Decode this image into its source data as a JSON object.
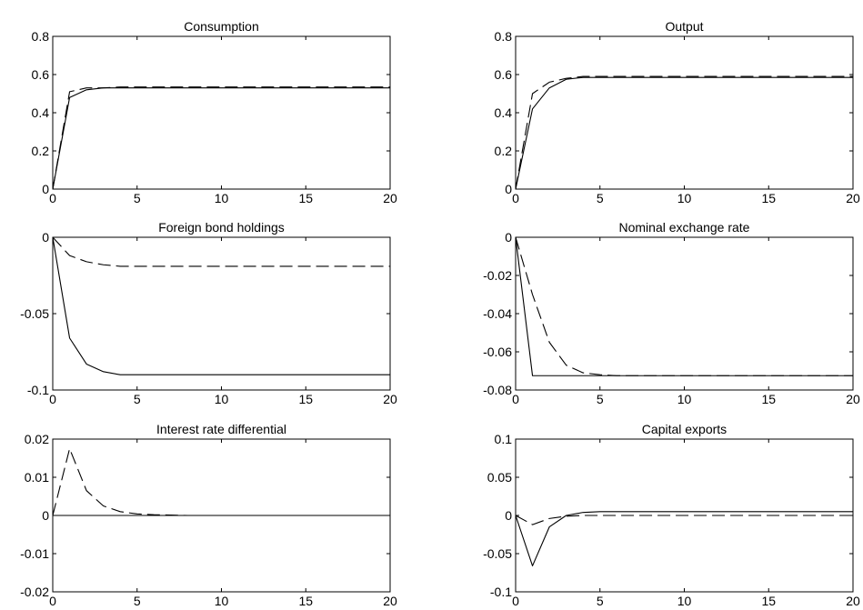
{
  "chart_data": [
    {
      "type": "line",
      "title": "Consumption",
      "xlim": [
        0,
        20
      ],
      "ylim": [
        0,
        0.8
      ],
      "xticks": [
        "0",
        "5",
        "10",
        "15",
        "20"
      ],
      "yticks": [
        "0",
        "0.2",
        "0.4",
        "0.6",
        "0.8"
      ],
      "x": [
        0,
        1,
        2,
        3,
        4,
        5,
        6,
        7,
        8,
        9,
        10,
        11,
        12,
        13,
        14,
        15,
        16,
        17,
        18,
        19,
        20
      ],
      "series": [
        {
          "style": "solid",
          "values": [
            0,
            0.48,
            0.52,
            0.53,
            0.53,
            0.53,
            0.53,
            0.53,
            0.53,
            0.53,
            0.53,
            0.53,
            0.53,
            0.53,
            0.53,
            0.53,
            0.53,
            0.53,
            0.53,
            0.53,
            0.53
          ]
        },
        {
          "style": "dashed",
          "values": [
            0,
            0.51,
            0.53,
            0.53,
            0.535,
            0.535,
            0.535,
            0.535,
            0.535,
            0.535,
            0.535,
            0.535,
            0.535,
            0.535,
            0.535,
            0.535,
            0.535,
            0.535,
            0.535,
            0.535,
            0.535
          ]
        }
      ]
    },
    {
      "type": "line",
      "title": "Output",
      "xlim": [
        0,
        20
      ],
      "ylim": [
        0,
        0.8
      ],
      "xticks": [
        "0",
        "5",
        "10",
        "15",
        "20"
      ],
      "yticks": [
        "0",
        "0.2",
        "0.4",
        "0.6",
        "0.8"
      ],
      "x": [
        0,
        1,
        2,
        3,
        4,
        5,
        6,
        7,
        8,
        9,
        10,
        11,
        12,
        13,
        14,
        15,
        16,
        17,
        18,
        19,
        20
      ],
      "series": [
        {
          "style": "solid",
          "values": [
            0,
            0.42,
            0.53,
            0.575,
            0.585,
            0.585,
            0.585,
            0.585,
            0.585,
            0.585,
            0.585,
            0.585,
            0.585,
            0.585,
            0.585,
            0.585,
            0.585,
            0.585,
            0.585,
            0.585,
            0.585
          ]
        },
        {
          "style": "dashed",
          "values": [
            0,
            0.5,
            0.56,
            0.58,
            0.59,
            0.59,
            0.59,
            0.59,
            0.59,
            0.59,
            0.59,
            0.59,
            0.59,
            0.59,
            0.59,
            0.59,
            0.59,
            0.59,
            0.59,
            0.59,
            0.59
          ]
        }
      ]
    },
    {
      "type": "line",
      "title": "Foreign bond holdings",
      "xlim": [
        0,
        20
      ],
      "ylim": [
        -0.1,
        0
      ],
      "xticks": [
        "0",
        "5",
        "10",
        "15",
        "20"
      ],
      "yticks": [
        "-0.1",
        "-0.05",
        "0"
      ],
      "x": [
        0,
        1,
        2,
        3,
        4,
        5,
        6,
        7,
        8,
        9,
        10,
        11,
        12,
        13,
        14,
        15,
        16,
        17,
        18,
        19,
        20
      ],
      "series": [
        {
          "style": "solid",
          "values": [
            0,
            -0.066,
            -0.083,
            -0.088,
            -0.09,
            -0.09,
            -0.09,
            -0.09,
            -0.09,
            -0.09,
            -0.09,
            -0.09,
            -0.09,
            -0.09,
            -0.09,
            -0.09,
            -0.09,
            -0.09,
            -0.09,
            -0.09,
            -0.09
          ]
        },
        {
          "style": "dashed",
          "values": [
            0,
            -0.012,
            -0.016,
            -0.018,
            -0.019,
            -0.019,
            -0.019,
            -0.019,
            -0.019,
            -0.019,
            -0.019,
            -0.019,
            -0.019,
            -0.019,
            -0.019,
            -0.019,
            -0.019,
            -0.019,
            -0.019,
            -0.019,
            -0.019
          ]
        }
      ]
    },
    {
      "type": "line",
      "title": "Nominal exchange rate",
      "xlim": [
        0,
        20
      ],
      "ylim": [
        -0.08,
        0
      ],
      "xticks": [
        "0",
        "5",
        "10",
        "15",
        "20"
      ],
      "yticks": [
        "-0.08",
        "-0.06",
        "-0.04",
        "-0.02",
        "0"
      ],
      "x": [
        0,
        1,
        2,
        3,
        4,
        5,
        6,
        7,
        8,
        9,
        10,
        11,
        12,
        13,
        14,
        15,
        16,
        17,
        18,
        19,
        20
      ],
      "series": [
        {
          "style": "solid",
          "values": [
            0,
            -0.0725,
            -0.0725,
            -0.0725,
            -0.0725,
            -0.0725,
            -0.0725,
            -0.0725,
            -0.0725,
            -0.0725,
            -0.0725,
            -0.0725,
            -0.0725,
            -0.0725,
            -0.0725,
            -0.0725,
            -0.0725,
            -0.0725,
            -0.0725,
            -0.0725,
            -0.0725
          ]
        },
        {
          "style": "dashed",
          "values": [
            0,
            -0.03,
            -0.055,
            -0.067,
            -0.071,
            -0.072,
            -0.0725,
            -0.0725,
            -0.0725,
            -0.0725,
            -0.0725,
            -0.0725,
            -0.0725,
            -0.0725,
            -0.0725,
            -0.0725,
            -0.0725,
            -0.0725,
            -0.0725,
            -0.0725,
            -0.0725
          ]
        }
      ]
    },
    {
      "type": "line",
      "title": "Interest rate differential",
      "xlim": [
        0,
        20
      ],
      "ylim": [
        -0.02,
        0.02
      ],
      "xticks": [
        "0",
        "5",
        "10",
        "15",
        "20"
      ],
      "yticks": [
        "-0.02",
        "-0.01",
        "0",
        "0.01",
        "0.02"
      ],
      "x": [
        0,
        1,
        2,
        3,
        4,
        5,
        6,
        7,
        8,
        9,
        10,
        11,
        12,
        13,
        14,
        15,
        16,
        17,
        18,
        19,
        20
      ],
      "series": [
        {
          "style": "solid",
          "values": [
            0,
            0,
            0,
            0,
            0,
            0,
            0,
            0,
            0,
            0,
            0,
            0,
            0,
            0,
            0,
            0,
            0,
            0,
            0,
            0,
            0
          ]
        },
        {
          "style": "dashed",
          "values": [
            0,
            0.0175,
            0.0065,
            0.0025,
            0.001,
            0.0004,
            0.0002,
            0.0001,
            0,
            0,
            0,
            0,
            0,
            0,
            0,
            0,
            0,
            0,
            0,
            0,
            0
          ]
        }
      ]
    },
    {
      "type": "line",
      "title": "Capital exports",
      "xlim": [
        0,
        20
      ],
      "ylim": [
        -0.1,
        0.1
      ],
      "xticks": [
        "0",
        "5",
        "10",
        "15",
        "20"
      ],
      "yticks": [
        "-0.1",
        "-0.05",
        "0",
        "0.05",
        "0.1"
      ],
      "x": [
        0,
        1,
        2,
        3,
        4,
        5,
        6,
        7,
        8,
        9,
        10,
        11,
        12,
        13,
        14,
        15,
        16,
        17,
        18,
        19,
        20
      ],
      "series": [
        {
          "style": "solid",
          "values": [
            0,
            -0.066,
            -0.015,
            0,
            0.004,
            0.005,
            0.005,
            0.005,
            0.005,
            0.005,
            0.005,
            0.005,
            0.005,
            0.005,
            0.005,
            0.005,
            0.005,
            0.005,
            0.005,
            0.005,
            0.005
          ]
        },
        {
          "style": "dashed",
          "values": [
            0,
            -0.012,
            -0.004,
            -0.001,
            0,
            0,
            0,
            0,
            0,
            0,
            0,
            0,
            0,
            0,
            0,
            0,
            0,
            0,
            0,
            0,
            0
          ]
        }
      ]
    }
  ]
}
